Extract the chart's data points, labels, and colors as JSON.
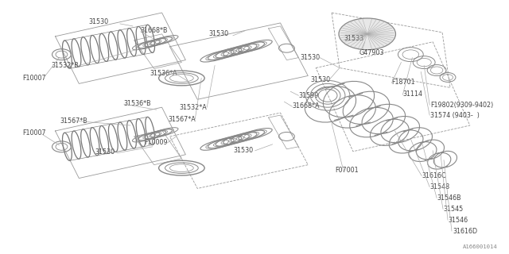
{
  "bg_color": "#ffffff",
  "lc": "#888888",
  "tc": "#444444",
  "fig_width": 6.4,
  "fig_height": 3.2,
  "dpi": 100,
  "watermark": "A166001014",
  "left_labels": [
    [
      "31530",
      110,
      293
    ],
    [
      "31668*B",
      178,
      275
    ],
    [
      "31532*B",
      100,
      235
    ],
    [
      "F10007",
      28,
      218
    ],
    [
      "31536*B",
      155,
      182
    ],
    [
      "31567*B",
      80,
      162
    ],
    [
      "F10007",
      28,
      148
    ],
    [
      "31530",
      120,
      128
    ]
  ],
  "mid_labels": [
    [
      "31530",
      263,
      273
    ],
    [
      "31536*A",
      230,
      215
    ],
    [
      "31599",
      380,
      198
    ],
    [
      "31668*A",
      355,
      180
    ],
    [
      "31532*A",
      270,
      172
    ],
    [
      "31567*A",
      248,
      152
    ],
    [
      "F10009",
      215,
      133
    ],
    [
      "31530",
      295,
      125
    ]
  ],
  "tr_labels": [
    [
      "31616D",
      570,
      28
    ],
    [
      "31546",
      563,
      42
    ],
    [
      "31545",
      555,
      56
    ],
    [
      "31546B",
      546,
      70
    ],
    [
      "31548",
      537,
      84
    ],
    [
      "31616C",
      525,
      98
    ],
    [
      "F07001",
      432,
      100
    ],
    [
      "31530",
      404,
      245
    ]
  ],
  "br_labels": [
    [
      "31530",
      416,
      218
    ],
    [
      "F19802(9309-9402)",
      530,
      185
    ],
    [
      "31574 (9403-  )",
      530,
      172
    ],
    [
      "31114",
      505,
      202
    ],
    [
      "F18701",
      488,
      222
    ],
    [
      "G47903",
      452,
      248
    ],
    [
      "31533",
      432,
      268
    ]
  ]
}
